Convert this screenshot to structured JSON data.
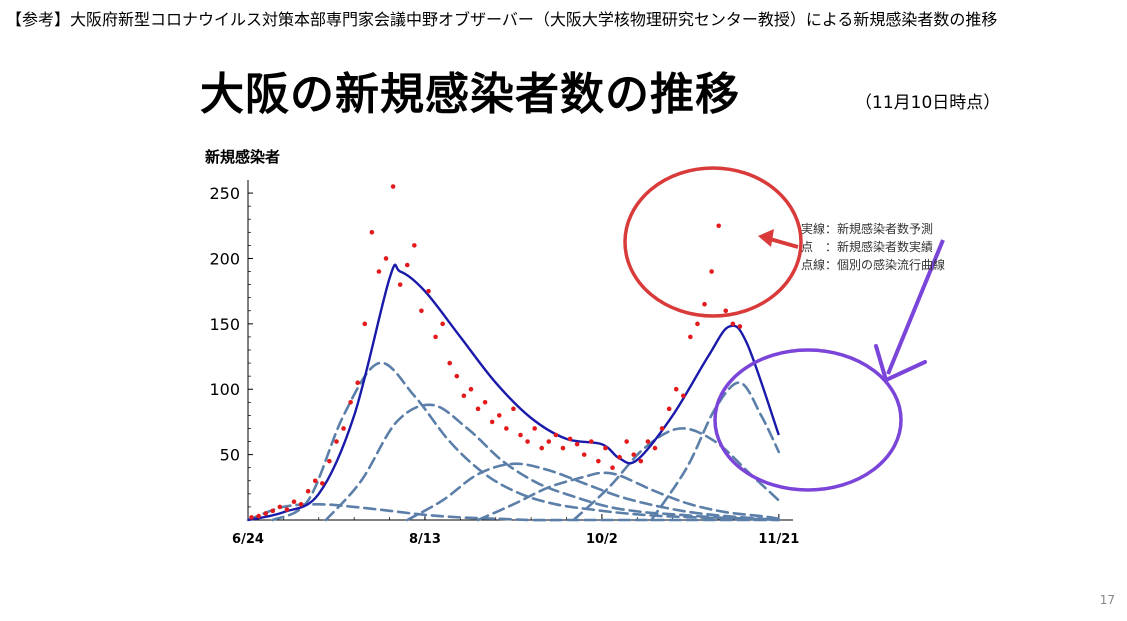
{
  "header": "【参考】大阪府新型コロナウイルス対策本部専門家会議中野オブザーバー（大阪大学核物理研究センター教授）による新規感染者数の推移",
  "title": "大阪の新規感染者数の推移",
  "subtitle": "（11月10日時点）",
  "page_number": "17",
  "legend": {
    "solid": "実線：新規感染者数予測",
    "points": "点　：新規感染者数実績",
    "dashed": "点線：個別の感染流行曲線"
  },
  "colors": {
    "points": "#e31a1c",
    "fit": "#1a1aaa",
    "components": "#5b7fa8",
    "red_annotation": "#d93a3a",
    "purple_annotation": "#7a45d8"
  },
  "chart_data": {
    "type": "line",
    "ylabel": "新規感染者",
    "xlabel": "",
    "x_ticks": [
      "6/24",
      "8/13",
      "10/2",
      "11/21"
    ],
    "y_ticks": [
      50,
      100,
      150,
      200,
      250
    ],
    "xlim": [
      "2020-06-24",
      "2020-11-25"
    ],
    "ylim": [
      0,
      260
    ],
    "series": [
      {
        "kind": "points",
        "x": [
          "2020-06-25",
          "2020-06-27",
          "2020-06-29",
          "2020-07-01",
          "2020-07-03",
          "2020-07-05",
          "2020-07-07",
          "2020-07-09",
          "2020-07-11",
          "2020-07-13",
          "2020-07-15",
          "2020-07-17",
          "2020-07-19",
          "2020-07-21",
          "2020-07-23",
          "2020-07-25",
          "2020-07-27",
          "2020-07-29",
          "2020-07-31",
          "2020-08-02",
          "2020-08-04",
          "2020-08-06",
          "2020-08-08",
          "2020-08-10",
          "2020-08-12",
          "2020-08-14",
          "2020-08-16",
          "2020-08-18",
          "2020-08-20",
          "2020-08-22",
          "2020-08-24",
          "2020-08-26",
          "2020-08-28",
          "2020-08-30",
          "2020-09-01",
          "2020-09-03",
          "2020-09-05",
          "2020-09-07",
          "2020-09-09",
          "2020-09-11",
          "2020-09-13",
          "2020-09-15",
          "2020-09-17",
          "2020-09-19",
          "2020-09-21",
          "2020-09-23",
          "2020-09-25",
          "2020-09-27",
          "2020-09-29",
          "2020-10-01",
          "2020-10-03",
          "2020-10-05",
          "2020-10-07",
          "2020-10-09",
          "2020-10-11",
          "2020-10-13",
          "2020-10-15",
          "2020-10-17",
          "2020-10-19",
          "2020-10-21",
          "2020-10-23",
          "2020-10-25",
          "2020-10-27",
          "2020-10-29",
          "2020-10-31",
          "2020-11-02",
          "2020-11-04",
          "2020-11-06",
          "2020-11-08",
          "2020-11-10"
        ],
        "y": [
          2,
          3,
          5,
          7,
          10,
          8,
          14,
          12,
          22,
          30,
          28,
          45,
          60,
          70,
          90,
          105,
          150,
          220,
          190,
          200,
          255,
          180,
          195,
          210,
          160,
          175,
          140,
          150,
          120,
          110,
          95,
          100,
          85,
          90,
          75,
          80,
          70,
          85,
          65,
          60,
          70,
          55,
          60,
          65,
          55,
          62,
          58,
          50,
          60,
          45,
          55,
          40,
          48,
          60,
          50,
          45,
          60,
          55,
          70,
          85,
          100,
          95,
          140,
          150,
          165,
          190,
          225,
          160,
          150,
          148
        ]
      },
      {
        "kind": "fit",
        "x": [
          "2020-06-24",
          "2020-07-04",
          "2020-07-14",
          "2020-07-24",
          "2020-08-03",
          "2020-08-06",
          "2020-08-13",
          "2020-08-23",
          "2020-09-02",
          "2020-09-12",
          "2020-09-22",
          "2020-10-02",
          "2020-10-07",
          "2020-10-12",
          "2020-10-22",
          "2020-11-01",
          "2020-11-07",
          "2020-11-12",
          "2020-11-21"
        ],
        "y": [
          0,
          6,
          20,
          80,
          185,
          190,
          175,
          140,
          105,
          78,
          62,
          58,
          47,
          46,
          80,
          125,
          148,
          135,
          65
        ]
      },
      {
        "kind": "component",
        "x": [
          "2020-06-24",
          "2020-07-04",
          "2020-07-14",
          "2020-07-24",
          "2020-08-03",
          "2020-08-13",
          "2020-08-23",
          "2020-09-02",
          "2020-09-12",
          "2020-09-22",
          "2020-10-02",
          "2020-10-12",
          "2020-10-22",
          "2020-11-01",
          "2020-11-11",
          "2020-11-21"
        ],
        "y": [
          0,
          10,
          12,
          10,
          7,
          4,
          2,
          1,
          0,
          0,
          0,
          0,
          0,
          0,
          0,
          0
        ]
      },
      {
        "kind": "component",
        "x": [
          "2020-07-01",
          "2020-07-11",
          "2020-07-21",
          "2020-07-31",
          "2020-08-10",
          "2020-08-20",
          "2020-08-30",
          "2020-09-09",
          "2020-09-19",
          "2020-09-29",
          "2020-10-09",
          "2020-10-19",
          "2020-10-29",
          "2020-11-08",
          "2020-11-18"
        ],
        "y": [
          0,
          15,
          80,
          120,
          95,
          60,
          35,
          20,
          12,
          8,
          5,
          3,
          2,
          1,
          0
        ]
      },
      {
        "kind": "component",
        "x": [
          "2020-07-16",
          "2020-07-26",
          "2020-08-05",
          "2020-08-15",
          "2020-08-25",
          "2020-09-04",
          "2020-09-14",
          "2020-09-24",
          "2020-10-04",
          "2020-10-14",
          "2020-10-24",
          "2020-11-03",
          "2020-11-13",
          "2020-11-21"
        ],
        "y": [
          0,
          30,
          75,
          88,
          70,
          45,
          28,
          18,
          10,
          6,
          4,
          2,
          1,
          0
        ]
      },
      {
        "kind": "component",
        "x": [
          "2020-08-08",
          "2020-08-18",
          "2020-08-28",
          "2020-09-07",
          "2020-09-17",
          "2020-09-27",
          "2020-10-07",
          "2020-10-17",
          "2020-10-27",
          "2020-11-06",
          "2020-11-16",
          "2020-11-21"
        ],
        "y": [
          0,
          15,
          35,
          43,
          38,
          28,
          18,
          11,
          6,
          3,
          1,
          0
        ]
      },
      {
        "kind": "component",
        "x": [
          "2020-08-28",
          "2020-09-07",
          "2020-09-17",
          "2020-09-27",
          "2020-10-02",
          "2020-10-07",
          "2020-10-17",
          "2020-10-27",
          "2020-11-06",
          "2020-11-16",
          "2020-11-21"
        ],
        "y": [
          0,
          12,
          25,
          33,
          36,
          34,
          22,
          12,
          6,
          3,
          1
        ]
      },
      {
        "kind": "component",
        "x": [
          "2020-09-24",
          "2020-10-04",
          "2020-10-14",
          "2020-10-24",
          "2020-11-03",
          "2020-11-13",
          "2020-11-21"
        ],
        "y": [
          0,
          25,
          55,
          70,
          60,
          35,
          15
        ]
      },
      {
        "kind": "component",
        "x": [
          "2020-10-16",
          "2020-10-26",
          "2020-11-03",
          "2020-11-10",
          "2020-11-16",
          "2020-11-21"
        ],
        "y": [
          0,
          40,
          85,
          105,
          80,
          52
        ]
      }
    ]
  }
}
